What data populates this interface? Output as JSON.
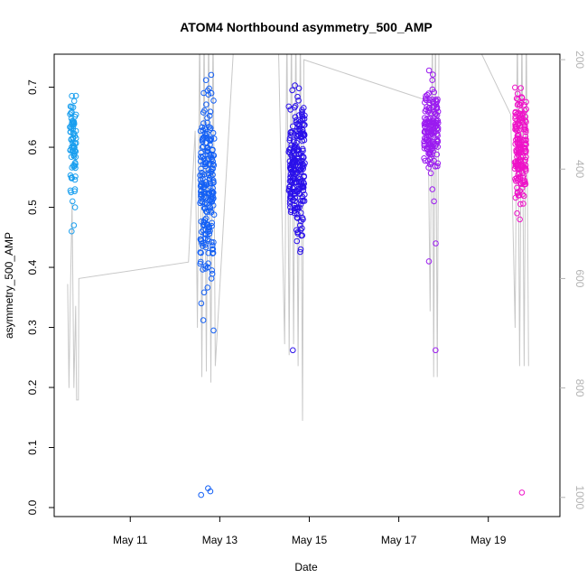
{
  "chart_data": {
    "type": "scatter",
    "title": "ATOM4 Northbound asymmetry_500_AMP",
    "xlabel": "Date",
    "ylabel": "asymmetry_500_AMP",
    "x_unit": "days in May",
    "xlim": [
      9.3,
      20.6
    ],
    "ylim": [
      -0.015,
      0.755
    ],
    "x_ticks": [
      {
        "value": 11,
        "label": "May 11"
      },
      {
        "value": 13,
        "label": "May 13"
      },
      {
        "value": 15,
        "label": "May 15"
      },
      {
        "value": 17,
        "label": "May 17"
      },
      {
        "value": 19,
        "label": "May 19"
      }
    ],
    "y_ticks": [
      0.0,
      0.1,
      0.2,
      0.3,
      0.4,
      0.5,
      0.6,
      0.7
    ],
    "y_tick_labels": [
      "0.0",
      "0.1",
      "0.2",
      "0.3",
      "0.4",
      "0.5",
      "0.6",
      "0.7"
    ],
    "right_axis": {
      "ticks": [
        200,
        400,
        600,
        800,
        1000
      ],
      "tick_labels": [
        "200",
        "400",
        "600",
        "800",
        "1000"
      ],
      "range_top": 190,
      "range_bottom": 1035,
      "inverted": true,
      "color": "#b3b3b3"
    },
    "series": [
      {
        "color": "#1a9fef",
        "x_center": 9.72,
        "x_spread": 0.07,
        "n": 70,
        "y_mean": 0.605,
        "y_sd": 0.035,
        "outliers_y": [
          0.677,
          0.668,
          0.528,
          0.53,
          0.51,
          0.5,
          0.47,
          0.46,
          0.525
        ]
      },
      {
        "color": "#1460f5",
        "x_center": 12.72,
        "x_spread": 0.16,
        "n": 210,
        "y_mean": 0.535,
        "y_sd": 0.075,
        "outliers_y": [
          0.312,
          0.295,
          0.032,
          0.027,
          0.021,
          0.698,
          0.69,
          0.398,
          0.395
        ]
      },
      {
        "color": "#2a10ea",
        "x_center": 14.72,
        "x_spread": 0.18,
        "n": 230,
        "y_mean": 0.565,
        "y_sd": 0.055,
        "outliers_y": [
          0.703,
          0.695,
          0.262,
          0.43,
          0.465,
          0.48
        ]
      },
      {
        "color": "#9b1bf0",
        "x_center": 17.72,
        "x_spread": 0.16,
        "n": 150,
        "y_mean": 0.63,
        "y_sd": 0.035,
        "outliers_y": [
          0.728,
          0.262,
          0.41,
          0.44,
          0.51,
          0.53
        ]
      },
      {
        "color": "#ee12c8",
        "x_center": 19.72,
        "x_spread": 0.13,
        "n": 170,
        "y_mean": 0.6,
        "y_sd": 0.04,
        "outliers_y": [
          0.025,
          0.48,
          0.49,
          0.52,
          0.68
        ]
      }
    ],
    "depth_series": {
      "color": "#c8c8c8",
      "points": [
        [
          9.6,
          610
        ],
        [
          9.63,
          800
        ],
        [
          9.66,
          640
        ],
        [
          9.7,
          460
        ],
        [
          9.74,
          800
        ],
        [
          9.78,
          650
        ],
        [
          9.8,
          822
        ],
        [
          9.84,
          822
        ],
        [
          9.85,
          600
        ],
        [
          12.3,
          570
        ],
        [
          12.45,
          330
        ],
        [
          12.5,
          690
        ],
        [
          12.55,
          130
        ],
        [
          12.6,
          780
        ],
        [
          12.65,
          130
        ],
        [
          12.7,
          770
        ],
        [
          12.75,
          130
        ],
        [
          12.8,
          790
        ],
        [
          12.85,
          130
        ],
        [
          12.9,
          760
        ],
        [
          13.3,
          190
        ],
        [
          13.5,
          80
        ],
        [
          14.3,
          130
        ],
        [
          14.45,
          720
        ],
        [
          14.5,
          130
        ],
        [
          14.55,
          740
        ],
        [
          14.6,
          130
        ],
        [
          14.65,
          720
        ],
        [
          14.7,
          130
        ],
        [
          14.75,
          760
        ],
        [
          14.8,
          130
        ],
        [
          14.85,
          860
        ],
        [
          14.88,
          200
        ],
        [
          17.65,
          275
        ],
        [
          17.7,
          660
        ],
        [
          17.75,
          130
        ],
        [
          17.78,
          780
        ],
        [
          17.82,
          130
        ],
        [
          17.86,
          780
        ],
        [
          17.9,
          130
        ],
        [
          18.5,
          130
        ],
        [
          19.5,
          300
        ],
        [
          19.6,
          690
        ],
        [
          19.65,
          130
        ],
        [
          19.7,
          760
        ],
        [
          19.75,
          130
        ],
        [
          19.8,
          760
        ],
        [
          19.85,
          130
        ],
        [
          19.9,
          760
        ]
      ]
    },
    "grid": false,
    "legend": "none"
  }
}
